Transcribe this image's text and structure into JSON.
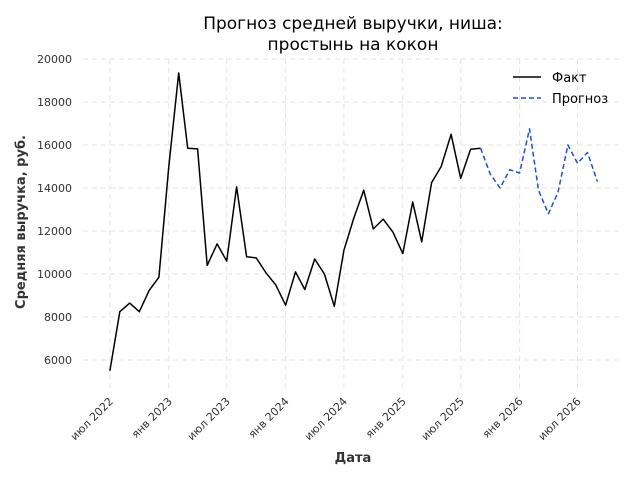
{
  "chart_data": {
    "type": "line",
    "title_lines": [
      "Прогноз средней выручки, ниша:",
      "простынь на кокон"
    ],
    "xlabel": "Дата",
    "ylabel": "Средняя выручка, руб.",
    "ylim": [
      4700,
      20000
    ],
    "yticks": [
      6000,
      8000,
      10000,
      12000,
      14000,
      16000,
      18000,
      20000
    ],
    "xlim": [
      "2022-04-08",
      "2026-11-20"
    ],
    "xticks": [
      {
        "date": "2022-07-01",
        "label": "июл 2022"
      },
      {
        "date": "2023-01-01",
        "label": "янв 2023"
      },
      {
        "date": "2023-07-01",
        "label": "июл 2023"
      },
      {
        "date": "2024-01-01",
        "label": "янв 2024"
      },
      {
        "date": "2024-07-01",
        "label": "июл 2024"
      },
      {
        "date": "2025-01-01",
        "label": "янв 2025"
      },
      {
        "date": "2025-07-01",
        "label": "июл 2025"
      },
      {
        "date": "2026-01-01",
        "label": "янв 2026"
      },
      {
        "date": "2026-07-01",
        "label": "июл 2026"
      }
    ],
    "grid": true,
    "legend_position": "top-right",
    "series": [
      {
        "name": "Факт",
        "color": "#000000",
        "dashed": false,
        "points": [
          [
            "2022-07-01",
            5500
          ],
          [
            "2022-08-01",
            8250
          ],
          [
            "2022-09-01",
            8650
          ],
          [
            "2022-10-01",
            8250
          ],
          [
            "2022-11-01",
            9250
          ],
          [
            "2022-12-01",
            9850
          ],
          [
            "2023-01-01",
            15000
          ],
          [
            "2023-02-01",
            19350
          ],
          [
            "2023-03-01",
            15850
          ],
          [
            "2023-04-01",
            15820
          ],
          [
            "2023-05-01",
            10400
          ],
          [
            "2023-06-01",
            11400
          ],
          [
            "2023-07-01",
            10600
          ],
          [
            "2023-08-01",
            14050
          ],
          [
            "2023-09-01",
            10800
          ],
          [
            "2023-10-01",
            10750
          ],
          [
            "2023-11-01",
            10050
          ],
          [
            "2023-12-01",
            9500
          ],
          [
            "2024-01-01",
            8550
          ],
          [
            "2024-02-01",
            10100
          ],
          [
            "2024-03-01",
            9280
          ],
          [
            "2024-04-01",
            10700
          ],
          [
            "2024-05-01",
            10000
          ],
          [
            "2024-06-01",
            8500
          ],
          [
            "2024-07-01",
            11100
          ],
          [
            "2024-08-01",
            12600
          ],
          [
            "2024-09-01",
            13900
          ],
          [
            "2024-10-01",
            12100
          ],
          [
            "2024-11-01",
            12550
          ],
          [
            "2024-12-01",
            11950
          ],
          [
            "2025-01-01",
            10950
          ],
          [
            "2025-02-01",
            13350
          ],
          [
            "2025-03-01",
            11500
          ],
          [
            "2025-04-01",
            14250
          ],
          [
            "2025-05-01",
            15000
          ],
          [
            "2025-06-01",
            16500
          ],
          [
            "2025-07-01",
            14450
          ],
          [
            "2025-08-01",
            15800
          ],
          [
            "2025-09-01",
            15850
          ]
        ]
      },
      {
        "name": "Прогноз",
        "color": "#1a4fd6",
        "dashed": true,
        "points": [
          [
            "2025-09-01",
            15850
          ],
          [
            "2025-10-01",
            14650
          ],
          [
            "2025-11-01",
            14000
          ],
          [
            "2025-12-01",
            14850
          ],
          [
            "2026-01-01",
            14700
          ],
          [
            "2026-02-01",
            16750
          ],
          [
            "2026-03-01",
            13900
          ],
          [
            "2026-04-01",
            12800
          ],
          [
            "2026-05-01",
            13800
          ],
          [
            "2026-06-01",
            16000
          ],
          [
            "2026-07-01",
            15150
          ],
          [
            "2026-08-01",
            15650
          ],
          [
            "2026-09-01",
            14300
          ]
        ]
      }
    ]
  }
}
